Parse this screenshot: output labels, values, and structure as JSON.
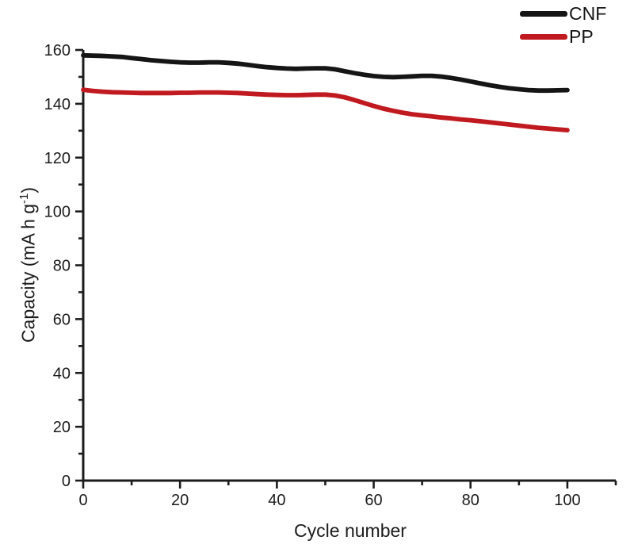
{
  "chart_data": {
    "type": "line",
    "title": "",
    "xlabel": "Cycle number",
    "ylabel": "Capacity (mA h g⁻¹)",
    "ylabel_parts": {
      "pre": "Capacity (mA h g",
      "sup": "-1",
      "post": ")"
    },
    "xlim": [
      0,
      110
    ],
    "ylim": [
      0,
      160
    ],
    "x_major_ticks": [
      0,
      20,
      40,
      60,
      80,
      100
    ],
    "x_minor_tick_step": 10,
    "y_major_ticks": [
      0,
      20,
      40,
      60,
      80,
      100,
      120,
      140,
      160
    ],
    "y_minor_tick_step": 10,
    "grid": false,
    "legend_position": "top-right",
    "axis_color": "#1c1c1c",
    "series": [
      {
        "name": "CNF",
        "color": "#151515",
        "line_width": 5.8,
        "x": [
          0,
          2,
          4,
          6,
          8,
          10,
          12,
          14,
          16,
          18,
          20,
          22,
          24,
          26,
          28,
          30,
          32,
          34,
          36,
          38,
          40,
          42,
          44,
          46,
          48,
          50,
          52,
          54,
          56,
          58,
          60,
          62,
          64,
          66,
          68,
          70,
          72,
          74,
          76,
          78,
          80,
          82,
          84,
          86,
          88,
          90,
          92,
          94,
          96,
          98,
          100
        ],
        "y": [
          158.0,
          157.9,
          157.8,
          157.6,
          157.4,
          157.0,
          156.6,
          156.2,
          155.9,
          155.6,
          155.4,
          155.3,
          155.3,
          155.4,
          155.4,
          155.2,
          154.9,
          154.5,
          154.0,
          153.6,
          153.3,
          153.1,
          153.0,
          153.1,
          153.2,
          153.2,
          152.8,
          152.1,
          151.4,
          150.8,
          150.3,
          150.0,
          149.9,
          150.0,
          150.2,
          150.4,
          150.4,
          150.1,
          149.6,
          149.0,
          148.3,
          147.6,
          146.9,
          146.3,
          145.8,
          145.4,
          145.1,
          144.9,
          144.9,
          145.0,
          145.1
        ]
      },
      {
        "name": "PP",
        "color": "#c01a20",
        "line_width": 5.8,
        "x": [
          0,
          2,
          4,
          6,
          8,
          10,
          12,
          14,
          16,
          18,
          20,
          22,
          24,
          26,
          28,
          30,
          32,
          34,
          36,
          38,
          40,
          42,
          44,
          46,
          48,
          50,
          52,
          54,
          56,
          58,
          60,
          62,
          64,
          66,
          68,
          70,
          72,
          74,
          76,
          78,
          80,
          82,
          84,
          86,
          88,
          90,
          92,
          94,
          96,
          98,
          100
        ],
        "y": [
          145.2,
          144.8,
          144.5,
          144.3,
          144.2,
          144.1,
          144.0,
          144.0,
          144.0,
          144.0,
          144.1,
          144.1,
          144.2,
          144.2,
          144.2,
          144.1,
          144.0,
          143.8,
          143.6,
          143.4,
          143.3,
          143.2,
          143.2,
          143.3,
          143.4,
          143.4,
          143.1,
          142.4,
          141.4,
          140.3,
          139.2,
          138.2,
          137.4,
          136.7,
          136.1,
          135.7,
          135.3,
          134.9,
          134.6,
          134.2,
          133.9,
          133.5,
          133.1,
          132.7,
          132.3,
          131.9,
          131.5,
          131.1,
          130.8,
          130.5,
          130.2
        ]
      }
    ]
  }
}
